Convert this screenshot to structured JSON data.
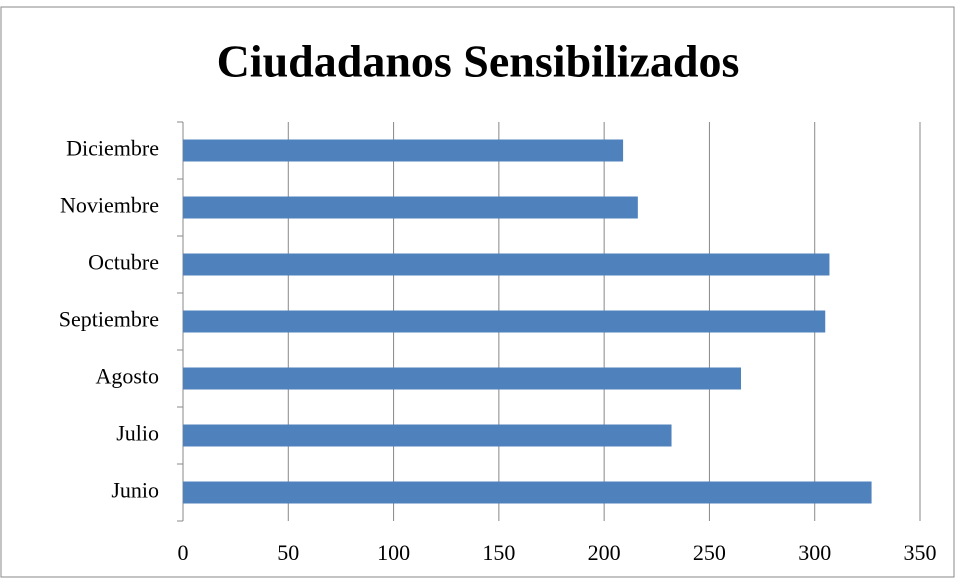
{
  "chart_data": {
    "type": "bar",
    "orientation": "horizontal",
    "title": "Ciudadanos Sensibilizados",
    "categories": [
      "Junio",
      "Julio",
      "Agosto",
      "Septiembre",
      "Octubre",
      "Noviembre",
      "Diciembre"
    ],
    "values": [
      327,
      232,
      265,
      305,
      307,
      216,
      209
    ],
    "color": "#4f81bd",
    "xlim": [
      0,
      350
    ],
    "xticks": [
      0,
      50,
      100,
      150,
      200,
      250,
      300,
      350
    ],
    "grid": true
  }
}
